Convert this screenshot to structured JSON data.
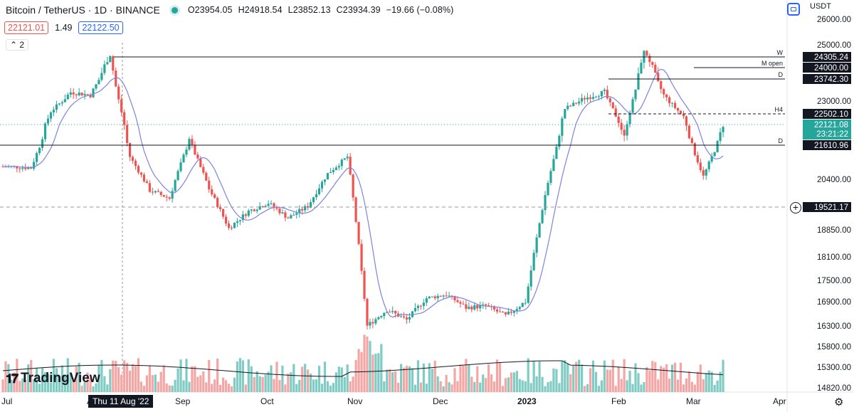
{
  "header": {
    "symbol_title": "Bitcoin / TetherUS · 1D · BINANCE",
    "open": "O23954.05",
    "high": "H24918.54",
    "low": "L23852.13",
    "close": "C23934.39",
    "change": "−19.66 (−0.08%)",
    "sell_price": "22121.01",
    "spread": "1.49",
    "buy_price": "22122.50",
    "indicators_collapse": "2",
    "status_color": "#26a69a"
  },
  "currency": "USDT",
  "logo_text": "TradingView",
  "crosshair_date": "Thu 11 Aug '22",
  "price_axis_ticks": [
    "26000.00",
    "25000.00",
    "23000.00",
    "20400.00",
    "18850.00",
    "18100.00",
    "17500.00",
    "16900.00",
    "16300.00",
    "15800.00",
    "15300.00",
    "14820.00"
  ],
  "time_axis_ticks": [
    "Jul",
    "Aug",
    "Sep",
    "Oct",
    "Nov",
    "Dec",
    "2023",
    "Feb",
    "Mar",
    "Apr"
  ],
  "levels": [
    {
      "name": "W",
      "price": "24305.24",
      "style": "solid",
      "label_bg": "#131722"
    },
    {
      "name": "M open",
      "price": "24000.00",
      "style": "solid",
      "label_bg": "#131722"
    },
    {
      "name": "D",
      "price": "23742.30",
      "style": "solid",
      "label_bg": "#131722"
    },
    {
      "name": "H4",
      "price": "22502.10",
      "style": "dashed",
      "label_bg": "#131722"
    },
    {
      "name": "D",
      "price": "21610.96",
      "style": "solid",
      "label_bg": "#131722"
    },
    {
      "name": "",
      "price": "19521.17",
      "style": "dashed-gray",
      "label_bg": "#131722"
    }
  ],
  "last_price": {
    "price": "22121.08",
    "countdown": "23:21:22",
    "color": "#26a69a"
  },
  "colors": {
    "up": "#26a69a",
    "down": "#ef5350",
    "ma": "#7b83e0",
    "ema": "#ff9800",
    "volume_up": "#80cbc4",
    "volume_down": "#f4a6a4",
    "volume_ma": "#131722"
  },
  "chart_data": {
    "type": "candlestick",
    "title": "Bitcoin / TetherUS · 1D · BINANCE",
    "x_range": [
      "2022-07-01",
      "2023-03-15"
    ],
    "y_visible_range": [
      14820,
      26000
    ],
    "grid": false,
    "weekly_closes": [
      {
        "date": "2022-07-04",
        "close": 20850
      },
      {
        "date": "2022-07-11",
        "close": 20800
      },
      {
        "date": "2022-07-18",
        "close": 22600
      },
      {
        "date": "2022-07-25",
        "close": 23300
      },
      {
        "date": "2022-08-01",
        "close": 23200
      },
      {
        "date": "2022-08-08",
        "close": 24400
      },
      {
        "date": "2022-08-15",
        "close": 21200
      },
      {
        "date": "2022-08-22",
        "close": 20050
      },
      {
        "date": "2022-08-29",
        "close": 19800
      },
      {
        "date": "2022-09-05",
        "close": 21800
      },
      {
        "date": "2022-09-12",
        "close": 20100
      },
      {
        "date": "2022-09-19",
        "close": 18900
      },
      {
        "date": "2022-09-26",
        "close": 19400
      },
      {
        "date": "2022-10-03",
        "close": 19650
      },
      {
        "date": "2022-10-10",
        "close": 19200
      },
      {
        "date": "2022-10-17",
        "close": 19550
      },
      {
        "date": "2022-10-24",
        "close": 20600
      },
      {
        "date": "2022-10-31",
        "close": 21200
      },
      {
        "date": "2022-11-07",
        "close": 16300
      },
      {
        "date": "2022-11-14",
        "close": 16700
      },
      {
        "date": "2022-11-21",
        "close": 16450
      },
      {
        "date": "2022-11-28",
        "close": 17000
      },
      {
        "date": "2022-12-05",
        "close": 17100
      },
      {
        "date": "2022-12-12",
        "close": 16750
      },
      {
        "date": "2022-12-19",
        "close": 16800
      },
      {
        "date": "2022-12-26",
        "close": 16550
      },
      {
        "date": "2023-01-02",
        "close": 16900
      },
      {
        "date": "2023-01-09",
        "close": 19900
      },
      {
        "date": "2023-01-16",
        "close": 22700
      },
      {
        "date": "2023-01-23",
        "close": 23100
      },
      {
        "date": "2023-01-30",
        "close": 23300
      },
      {
        "date": "2023-02-06",
        "close": 21800
      },
      {
        "date": "2023-02-13",
        "close": 24600
      },
      {
        "date": "2023-02-20",
        "close": 23200
      },
      {
        "date": "2023-02-27",
        "close": 22400
      },
      {
        "date": "2023-03-06",
        "close": 20500
      },
      {
        "date": "2023-03-13",
        "close": 22121
      }
    ]
  }
}
